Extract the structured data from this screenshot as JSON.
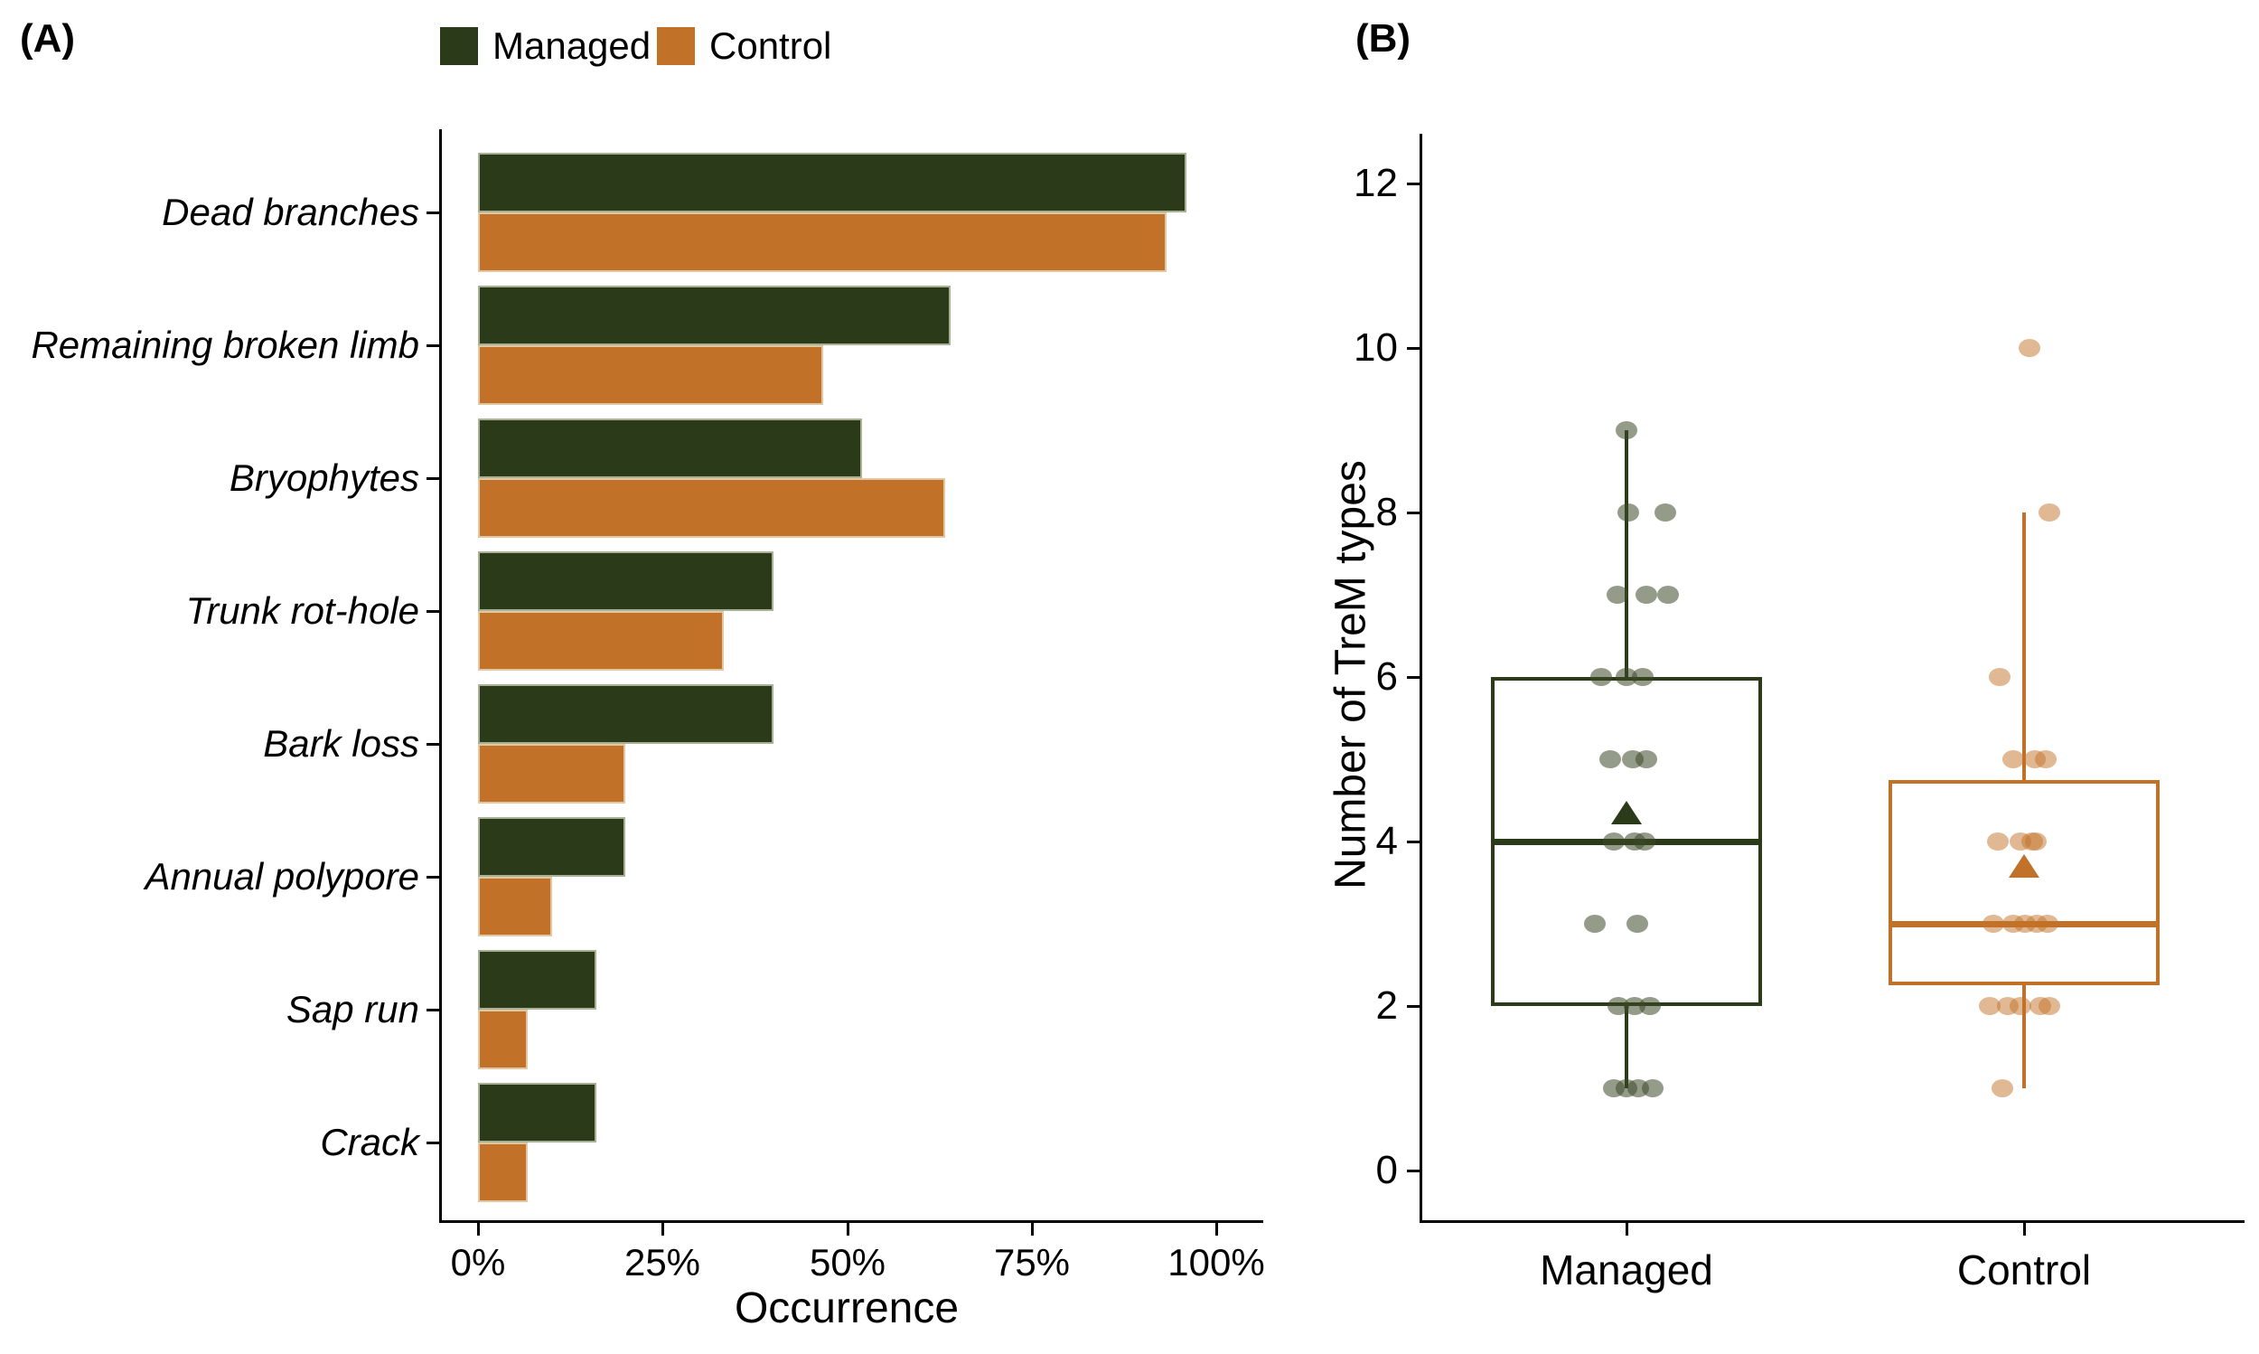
{
  "panel_a_tag": "(A)",
  "panel_b_tag": "(B)",
  "colors": {
    "managed": "#2B3A18",
    "control": "#C17128",
    "managed_point": "rgba(60,72,40,0.55)",
    "control_point": "rgba(193,113,40,0.50)",
    "managed_bar_border": "#A8B194",
    "control_bar_border": "#E3C6A2",
    "axis": "#000000"
  },
  "legend": {
    "items": [
      {
        "label": "Managed",
        "color_key": "managed"
      },
      {
        "label": "Control",
        "color_key": "control"
      }
    ]
  },
  "chart_data": [
    {
      "type": "bar",
      "orientation": "horizontal",
      "title": "",
      "xlabel": "Occurrence",
      "ylabel": "",
      "categories": [
        "Dead branches",
        "Remaining broken limb",
        "Bryophytes",
        "Trunk rot-hole",
        "Bark loss",
        "Annual polypore",
        "Sap run",
        "Crack"
      ],
      "series": [
        {
          "name": "Managed",
          "values": [
            96,
            64,
            52,
            40,
            40,
            20,
            16,
            16
          ]
        },
        {
          "name": "Control",
          "values": [
            93.3,
            46.7,
            63.3,
            33.3,
            20,
            10,
            6.7,
            6.7
          ]
        }
      ],
      "x_tick_labels": [
        "0%",
        "25%",
        "50%",
        "75%",
        "100%"
      ],
      "xlim": [
        0,
        100
      ],
      "grid": false,
      "legend_position": "top"
    },
    {
      "type": "boxplot",
      "title": "",
      "xlabel": "",
      "ylabel": "Number of TreM types",
      "ylim": [
        0,
        12
      ],
      "y_tick_labels": [
        "0",
        "2",
        "4",
        "6",
        "8",
        "10",
        "12"
      ],
      "grid": false,
      "groups": [
        {
          "label": "Managed",
          "q1": 2,
          "median": 4,
          "q3": 6,
          "whisker_low": 1,
          "whisker_high": 9,
          "mean": 4.35,
          "outliers": [],
          "points": [
            [
              9,
              0
            ],
            [
              8,
              2
            ],
            [
              8,
              43
            ],
            [
              7,
              -10
            ],
            [
              7,
              22
            ],
            [
              7,
              46
            ],
            [
              6,
              -28
            ],
            [
              6,
              0
            ],
            [
              6,
              18
            ],
            [
              5,
              -18
            ],
            [
              5,
              7
            ],
            [
              5,
              22
            ],
            [
              4,
              -14
            ],
            [
              4,
              9
            ],
            [
              4,
              20
            ],
            [
              3,
              -35
            ],
            [
              3,
              12
            ],
            [
              2,
              -9
            ],
            [
              2,
              9
            ],
            [
              2,
              26
            ],
            [
              1,
              -14
            ],
            [
              1,
              0
            ],
            [
              1,
              13
            ],
            [
              1,
              29
            ]
          ]
        },
        {
          "label": "Control",
          "q1": 2.25,
          "median": 3,
          "q3": 4.75,
          "whisker_low": 1,
          "whisker_high": 8,
          "mean": 3.7,
          "outliers": [
            10
          ],
          "points": [
            [
              10,
              6
            ],
            [
              8,
              28
            ],
            [
              6,
              -27
            ],
            [
              5,
              -12
            ],
            [
              5,
              12
            ],
            [
              5,
              24
            ],
            [
              4,
              -29
            ],
            [
              4,
              -4
            ],
            [
              4,
              9
            ],
            [
              4,
              13
            ],
            [
              3,
              -34
            ],
            [
              3,
              -12
            ],
            [
              3,
              1
            ],
            [
              3,
              14
            ],
            [
              3,
              26
            ],
            [
              2,
              -38
            ],
            [
              2,
              -18
            ],
            [
              2,
              -4
            ],
            [
              2,
              18
            ],
            [
              2,
              28
            ],
            [
              1,
              -24
            ]
          ]
        }
      ]
    }
  ]
}
